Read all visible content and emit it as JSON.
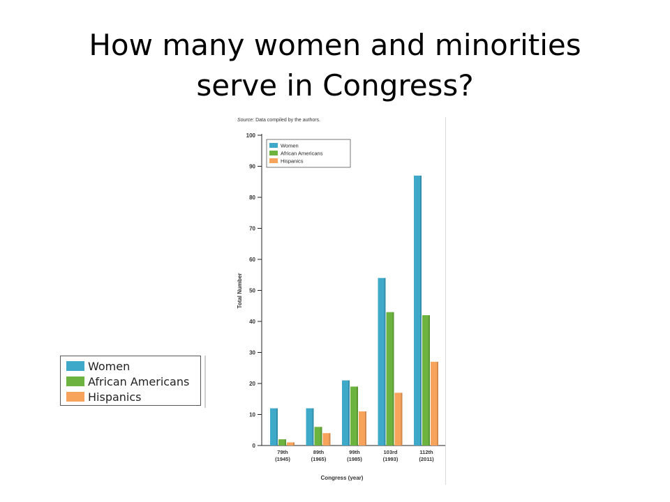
{
  "slide": {
    "title_line1": "How many women and minorities",
    "title_line2": "serve in Congress?"
  },
  "figure": {
    "source_prefix": "Source:",
    "source_text": " Data compiled by the authors."
  },
  "big_legend": {
    "items": [
      {
        "label": "Women",
        "color": "#3fa9c9"
      },
      {
        "label": "African Americans",
        "color": "#6cb33f"
      },
      {
        "label": "Hispanics",
        "color": "#f7a35c"
      }
    ]
  },
  "chart_data": {
    "type": "bar",
    "categories": [
      {
        "line1": "79th",
        "line2": "(1945)"
      },
      {
        "line1": "89th",
        "line2": "(1965)"
      },
      {
        "line1": "99th",
        "line2": "(1985)"
      },
      {
        "line1": "103rd",
        "line2": "(1993)"
      },
      {
        "line1": "112th",
        "line2": "(2011)"
      }
    ],
    "series": [
      {
        "name": "Women",
        "color": "#3fa9c9",
        "values": [
          12,
          12,
          21,
          54,
          87
        ]
      },
      {
        "name": "African Americans",
        "color": "#6cb33f",
        "values": [
          2,
          6,
          19,
          43,
          42
        ]
      },
      {
        "name": "Hispanics",
        "color": "#f7a35c",
        "values": [
          1,
          4,
          11,
          17,
          27
        ]
      }
    ],
    "xlabel": "Congress (year)",
    "ylabel": "Total Number",
    "ylim": [
      0,
      100
    ],
    "yticks": [
      0,
      10,
      20,
      30,
      40,
      50,
      60,
      70,
      80,
      90,
      100
    ],
    "legend_position": "top-left",
    "grid": false
  }
}
